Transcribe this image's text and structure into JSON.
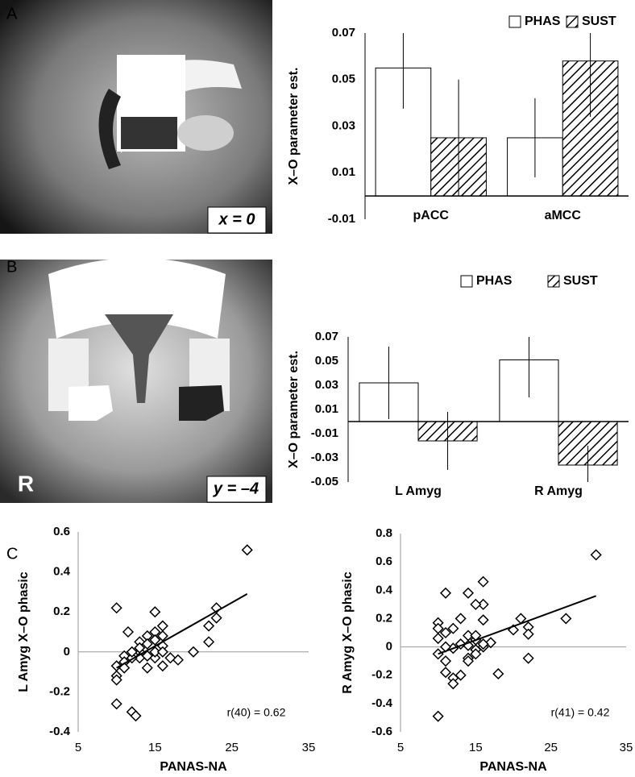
{
  "chart_data": [
    {
      "type": "bar",
      "panel": "A",
      "image_label": "x = 0",
      "ylabel": "X–O parameter est.",
      "categories": [
        "pACC",
        "aMCC"
      ],
      "series": [
        {
          "name": "PHAS",
          "color": "#ffffff",
          "values": [
            0.055,
            0.025
          ],
          "errors": [
            0.0175,
            0.017
          ]
        },
        {
          "name": "SUST",
          "color": "#ffffff",
          "hatch": true,
          "values": [
            0.025,
            0.058
          ],
          "errors": [
            0.025,
            0.024
          ]
        }
      ],
      "ylim": [
        -0.01,
        0.07
      ],
      "yticks": [
        -0.01,
        0.01,
        0.03,
        0.05,
        0.07
      ]
    },
    {
      "type": "bar",
      "panel": "B",
      "image_label": "y = –4",
      "image_side": "R",
      "ylabel": "X–O parameter est.",
      "categories": [
        "L Amyg",
        "R Amyg"
      ],
      "series": [
        {
          "name": "PHAS",
          "color": "#ffffff",
          "values": [
            0.032,
            0.051
          ],
          "errors": [
            0.03,
            0.031
          ]
        },
        {
          "name": "SUST",
          "color": "#ffffff",
          "hatch": true,
          "values": [
            -0.016,
            -0.036
          ],
          "errors": [
            0.024,
            0.016
          ]
        }
      ],
      "ylim": [
        -0.05,
        0.07
      ],
      "yticks": [
        -0.05,
        -0.03,
        -0.01,
        0.01,
        0.03,
        0.05,
        0.07
      ]
    },
    {
      "type": "scatter",
      "panel": "C",
      "xlabel": "PANAS-NA",
      "ylabel": "L Amyg X–O phasic",
      "annotation": "r(40) = 0.62",
      "x": [
        27,
        23,
        23,
        22,
        22,
        20,
        18,
        17,
        16,
        16,
        16,
        16,
        15,
        15,
        15,
        15,
        14,
        14,
        14,
        14,
        13,
        13,
        13,
        12,
        12,
        12.5,
        11.5,
        11,
        11,
        10,
        10,
        10,
        10,
        10,
        11,
        14,
        12,
        15,
        16,
        13
      ],
      "values": [
        0.51,
        0.22,
        0.17,
        0.13,
        0.05,
        0.0,
        -0.04,
        -0.03,
        0.03,
        0.08,
        0.13,
        -0.07,
        0.2,
        0.1,
        -0.03,
        0.0,
        0.08,
        0.04,
        -0.08,
        -0.02,
        0.05,
        0.0,
        -0.03,
        -0.03,
        -0.3,
        -0.32,
        0.1,
        -0.02,
        -0.05,
        0.22,
        -0.07,
        -0.12,
        -0.14,
        -0.26,
        -0.08,
        -0.02,
        0.0,
        0.06,
        0.0,
        0.02
      ],
      "trendline": {
        "x": [
          10,
          27
        ],
        "values": [
          -0.08,
          0.29
        ]
      },
      "xlim": [
        5,
        35
      ],
      "xticks": [
        5,
        15,
        25,
        35
      ],
      "ylim": [
        -0.4,
        0.6
      ],
      "yticks": [
        -0.4,
        -0.2,
        0,
        0.2,
        0.4,
        0.6
      ]
    },
    {
      "type": "scatter",
      "xlabel": "PANAS-NA",
      "ylabel": "R Amyg X–O phasic",
      "annotation": "r(41) = 0.42",
      "x": [
        31,
        27,
        22,
        22,
        22,
        21,
        20,
        18,
        17,
        16,
        16,
        16,
        15,
        15,
        15,
        15,
        14,
        14,
        14,
        14,
        13,
        13,
        12,
        12,
        12,
        12,
        11,
        11,
        11,
        11,
        10,
        10,
        10,
        10,
        10,
        13,
        15,
        16,
        14,
        16,
        11
      ],
      "values": [
        0.65,
        0.2,
        -0.08,
        0.14,
        0.09,
        0.2,
        0.12,
        -0.19,
        0.03,
        0.46,
        0.3,
        0.19,
        0.3,
        0.05,
        -0.02,
        -0.05,
        0.38,
        0.08,
        -0.08,
        0.01,
        -0.2,
        0.02,
        0.13,
        -0.01,
        -0.22,
        -0.26,
        0.38,
        0.1,
        -0.1,
        -0.18,
        0.17,
        0.13,
        0.06,
        -0.05,
        -0.49,
        0.2,
        0.08,
        0.0,
        -0.1,
        0.02,
        0.0
      ],
      "trendline": {
        "x": [
          10,
          31
        ],
        "values": [
          -0.05,
          0.36
        ]
      },
      "xlim": [
        5,
        35
      ],
      "xticks": [
        5,
        15,
        25,
        35
      ],
      "ylim": [
        -0.6,
        0.8
      ],
      "yticks": [
        -0.6,
        -0.4,
        -0.2,
        0,
        0.2,
        0.4,
        0.6,
        0.8
      ]
    }
  ]
}
